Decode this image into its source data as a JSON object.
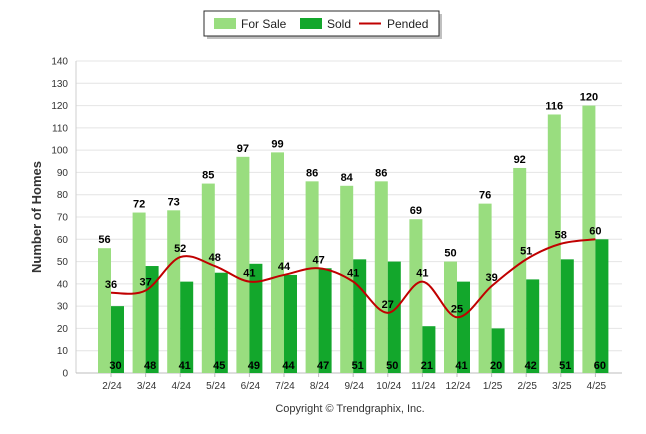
{
  "chart_data": {
    "type": "bar",
    "categories": [
      "2/24",
      "3/24",
      "4/24",
      "5/24",
      "6/24",
      "7/24",
      "8/24",
      "9/24",
      "10/24",
      "11/24",
      "12/24",
      "1/25",
      "2/25",
      "3/25",
      "4/25"
    ],
    "series": [
      {
        "name": "For Sale",
        "type": "bar",
        "color": "#99dd7f",
        "values": [
          56,
          72,
          73,
          85,
          97,
          99,
          86,
          84,
          86,
          69,
          50,
          76,
          92,
          116,
          120
        ]
      },
      {
        "name": "Sold",
        "type": "bar",
        "color": "#13a72c",
        "values": [
          30,
          48,
          41,
          45,
          49,
          44,
          47,
          51,
          50,
          21,
          41,
          20,
          42,
          51,
          60
        ]
      },
      {
        "name": "Pended",
        "type": "line",
        "color": "#c00000",
        "values": [
          36,
          37,
          52,
          48,
          41,
          44,
          47,
          41,
          27,
          41,
          25,
          39,
          51,
          58,
          60
        ]
      }
    ],
    "ylabel": "Number of Homes",
    "xlabel": "",
    "ylim": [
      0,
      140
    ],
    "yticks": [
      0,
      10,
      20,
      30,
      40,
      50,
      60,
      70,
      80,
      90,
      100,
      110,
      120,
      130,
      140
    ],
    "grid": true,
    "legend_position": "top-center"
  },
  "copyright": "Copyright © Trendgraphix, Inc."
}
